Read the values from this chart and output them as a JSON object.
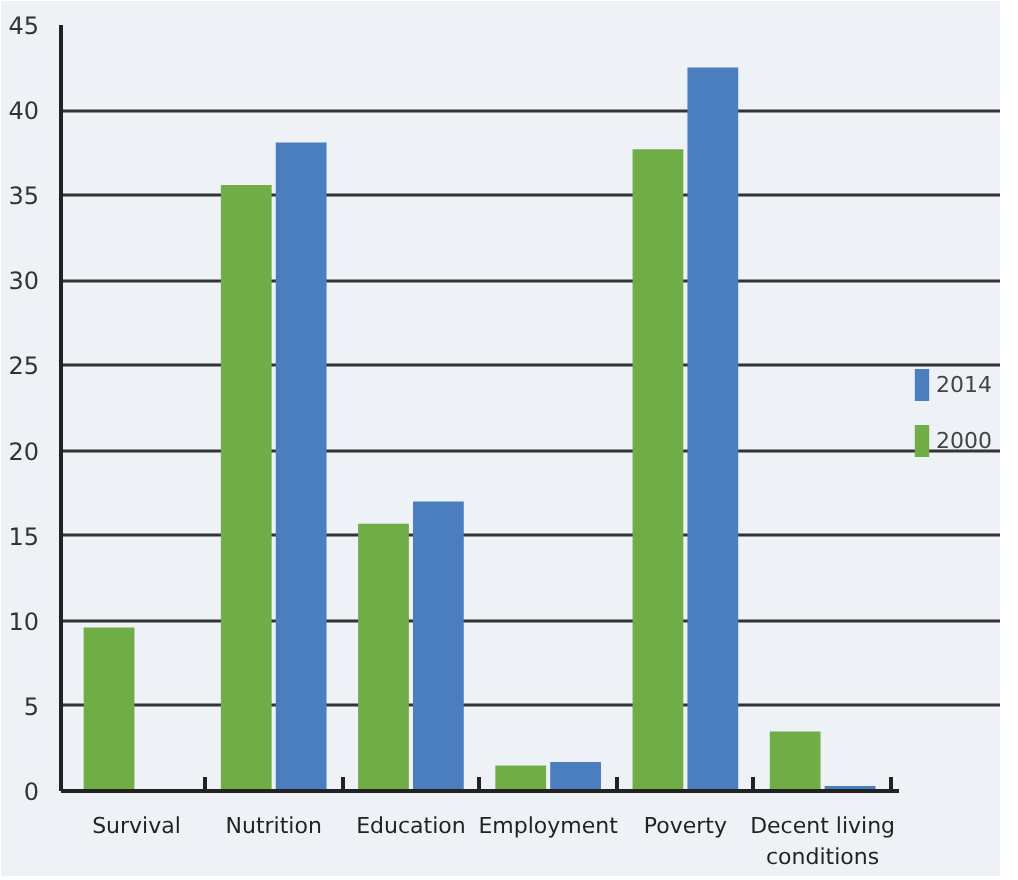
{
  "chart_data": {
    "type": "bar",
    "categories": [
      "Survival",
      "Nutrition",
      "Education",
      "Employment",
      "Poverty",
      "Decent living conditions"
    ],
    "series": [
      {
        "name": "2000",
        "color": "#70ad47",
        "values": [
          9.6,
          35.6,
          15.7,
          1.5,
          37.7,
          3.5
        ]
      },
      {
        "name": "2014",
        "color": "#4a7ebf",
        "values": [
          0,
          38.1,
          17.0,
          1.7,
          42.5,
          0.3
        ]
      }
    ],
    "ylim": [
      0,
      45
    ],
    "yticks": [
      0,
      5,
      10,
      15,
      20,
      25,
      30,
      35,
      40,
      45
    ],
    "grid": "y",
    "legend": "right"
  }
}
